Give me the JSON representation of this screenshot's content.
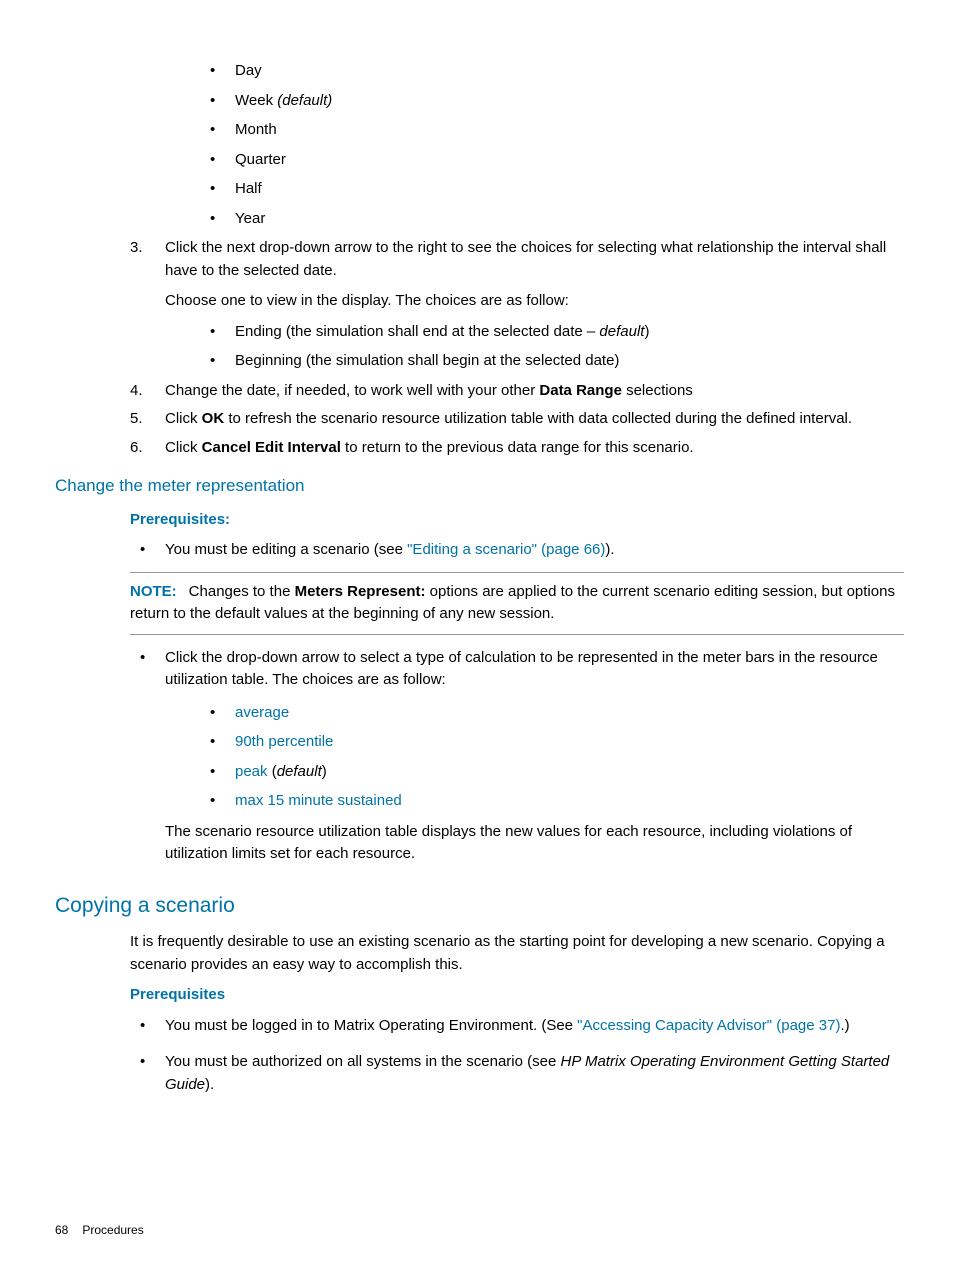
{
  "top_bullets": [
    "Day",
    "Week",
    "Month",
    "Quarter",
    "Half",
    "Year"
  ],
  "top_bullet_default_suffix": " (default)",
  "step3": {
    "num": "3.",
    "line1": "Click the next drop-down arrow to the right to see the choices for selecting what relationship the interval shall have to the selected date.",
    "line2": "Choose one to view in the display. The choices are as follow:",
    "bullets": [
      {
        "pre": "Ending (the simulation shall end at the selected date – ",
        "italic": "default",
        "post": ")"
      },
      {
        "pre": "Beginning (the simulation shall begin at the selected date)",
        "italic": "",
        "post": ""
      }
    ]
  },
  "step4": {
    "num": "4.",
    "pre": "Change the date, if needed, to work well with your other ",
    "bold": "Data Range",
    "post": " selections"
  },
  "step5": {
    "num": "5.",
    "pre": "Click ",
    "bold": "OK",
    "post": " to refresh the scenario resource utilization table with data collected during the defined interval."
  },
  "step6": {
    "num": "6.",
    "pre": "Click ",
    "bold": "Cancel Edit Interval",
    "post": " to return to the previous data range for this scenario."
  },
  "meter_heading": "Change the meter representation",
  "prereq_label": "Prerequisites:",
  "meter_prereq": {
    "pre": "You must be editing a scenario (see ",
    "link": "\"Editing a scenario\" (page 66)",
    "post": ")."
  },
  "note": {
    "label": "NOTE:",
    "pre": "Changes to the ",
    "bold": "Meters Represent:",
    "post": " options are applied to the current scenario editing session, but options return to the default values at the beginning of any new session."
  },
  "calc_intro": "Click the drop-down arrow to select a type of calculation to be represented in the meter bars in the resource utilization table. The choices are as follow:",
  "calc_items": [
    {
      "link": "average",
      "italic": "",
      "paren": ""
    },
    {
      "link": "90th percentile",
      "italic": "",
      "paren": ""
    },
    {
      "link": "peak",
      "italic": "default",
      "paren": "1"
    },
    {
      "link": "max 15 minute sustained",
      "italic": "",
      "paren": ""
    }
  ],
  "calc_outro": "The scenario resource utilization table displays the new values for each resource, including violations of utilization limits set for each resource.",
  "copy_heading": "Copying a scenario",
  "copy_intro": "It is frequently desirable to use an existing scenario as the starting point for developing a new scenario. Copying a scenario provides an easy way to accomplish this.",
  "prereq_label2": "Prerequisites",
  "copy_pr1": {
    "pre": "You must be logged in to Matrix Operating Environment. (See ",
    "link": "\"Accessing Capacity Advisor\" (page 37)",
    "post": ".)"
  },
  "copy_pr2": {
    "pre": "You must be authorized on all systems in the scenario (see ",
    "italic": "HP Matrix Operating Environment Getting Started Guide",
    "post": ")."
  },
  "footer": {
    "page": "68",
    "section": "Procedures"
  }
}
